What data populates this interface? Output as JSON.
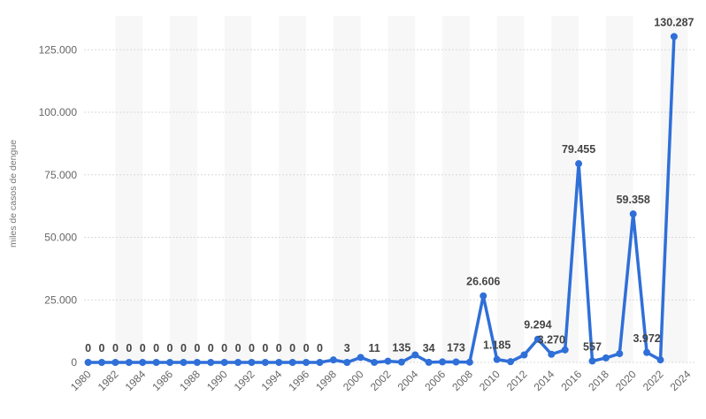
{
  "chart_data": {
    "type": "line",
    "y_label": "miles de casos de dengue",
    "x": [
      1980,
      1981,
      1982,
      1983,
      1984,
      1985,
      1986,
      1987,
      1988,
      1989,
      1990,
      1991,
      1992,
      1993,
      1994,
      1995,
      1996,
      1997,
      1998,
      1999,
      2000,
      2001,
      2002,
      2003,
      2004,
      2005,
      2006,
      2007,
      2008,
      2009,
      2010,
      2011,
      2012,
      2013,
      2014,
      2015,
      2016,
      2017,
      2018,
      2019,
      2020,
      2021,
      2022,
      2023
    ],
    "values": [
      0,
      0,
      0,
      0,
      0,
      0,
      0,
      0,
      0,
      0,
      0,
      0,
      0,
      0,
      0,
      0,
      0,
      0,
      1000,
      3,
      2000,
      11,
      500,
      135,
      3000,
      34,
      200,
      173,
      100,
      26606,
      1185,
      300,
      3000,
      9294,
      3270,
      5000,
      79455,
      557,
      1800,
      3500,
      59358,
      3972,
      1000,
      130287
    ],
    "value_labels": [
      "0",
      "0",
      "0",
      "0",
      "0",
      "0",
      "0",
      "0",
      "0",
      "0",
      "0",
      "0",
      "0",
      "0",
      "0",
      "0",
      "0",
      "0",
      null,
      "3",
      null,
      "11",
      null,
      "135",
      null,
      "34",
      null,
      "173",
      null,
      "26.606",
      "1.185",
      null,
      null,
      "9.294",
      "3.270",
      null,
      "79.455",
      "557",
      null,
      null,
      "59.358",
      "3.972",
      null,
      "130.287"
    ],
    "color": "#2f6fd8",
    "xlim": [
      1979.7,
      2024.5
    ],
    "xticks": [
      1980,
      1982,
      1984,
      1986,
      1988,
      1990,
      1992,
      1994,
      1996,
      1998,
      2000,
      2002,
      2004,
      2006,
      2008,
      2010,
      2012,
      2014,
      2016,
      2018,
      2020,
      2022,
      2024
    ],
    "ylim": [
      0,
      135000
    ],
    "yticks": [
      0,
      {
        "value": 25000,
        "label": "25.000"
      },
      {
        "value": 50000,
        "label": "50.000"
      },
      {
        "value": 75000,
        "label": "75.000"
      },
      {
        "value": 100000,
        "label": "100.000"
      },
      {
        "value": 125000,
        "label": "125.000"
      }
    ],
    "grid": true
  }
}
